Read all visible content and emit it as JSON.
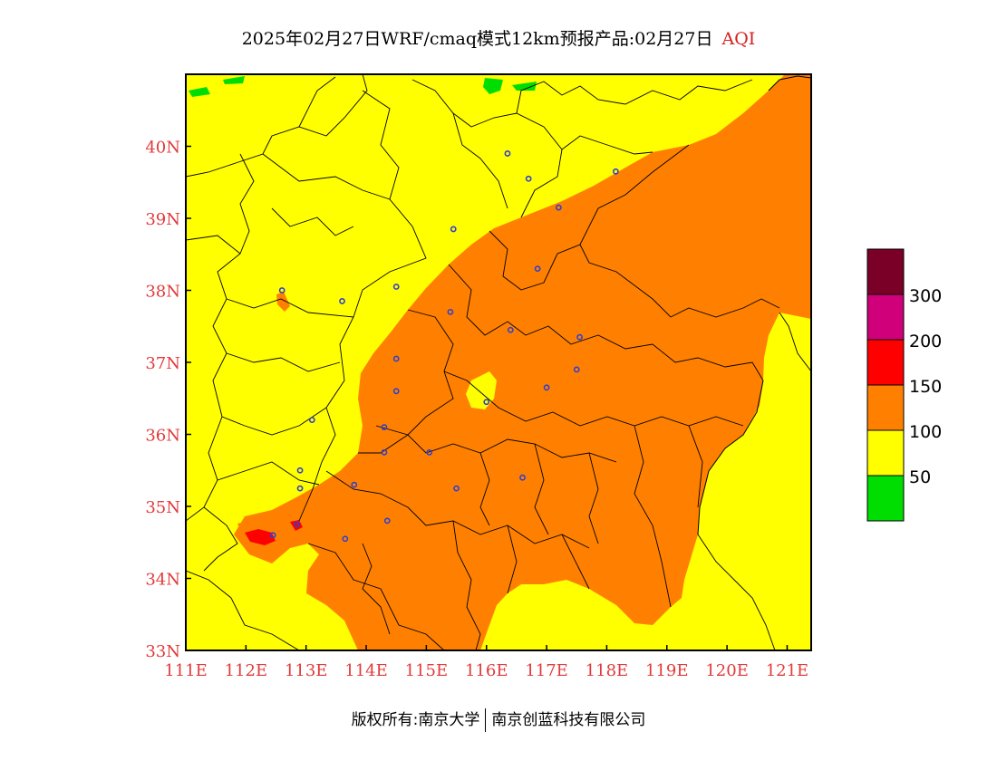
{
  "title": {
    "main": "2025年02月27日WRF/cmaq模式12km预报产品:02月27日",
    "variable": "AQI"
  },
  "map": {
    "lon_range": [
      111,
      121.4
    ],
    "lat_range": [
      33,
      41
    ],
    "x_ticks": [
      "111E",
      "112E",
      "113E",
      "114E",
      "115E",
      "116E",
      "117E",
      "118E",
      "119E",
      "120E",
      "121E"
    ],
    "y_ticks": [
      "33N",
      "34N",
      "35N",
      "36N",
      "37N",
      "38N",
      "39N",
      "40N"
    ],
    "cities": [
      [
        112.6,
        38.0
      ],
      [
        113.6,
        37.85
      ],
      [
        114.5,
        38.05
      ],
      [
        115.4,
        37.7
      ],
      [
        116.4,
        37.45
      ],
      [
        115.45,
        38.85
      ],
      [
        116.35,
        39.9
      ],
      [
        116.7,
        39.55
      ],
      [
        118.15,
        39.65
      ],
      [
        117.2,
        39.15
      ],
      [
        116.85,
        38.3
      ],
      [
        114.5,
        37.05
      ],
      [
        114.5,
        36.6
      ],
      [
        116.0,
        36.45
      ],
      [
        117.0,
        36.65
      ],
      [
        117.5,
        36.9
      ],
      [
        117.55,
        37.35
      ],
      [
        113.1,
        36.2
      ],
      [
        112.9,
        35.5
      ],
      [
        112.9,
        35.25
      ],
      [
        113.8,
        35.3
      ],
      [
        114.3,
        36.1
      ],
      [
        114.3,
        35.75
      ],
      [
        115.05,
        35.75
      ],
      [
        115.5,
        35.25
      ],
      [
        116.6,
        35.4
      ],
      [
        114.35,
        34.8
      ],
      [
        113.65,
        34.55
      ],
      [
        112.45,
        34.6
      ],
      [
        112.85,
        34.75
      ]
    ],
    "colors": {
      "green": "#00dd00",
      "yellow": "#ffff00",
      "orange": "#ff8000",
      "red": "#ff0000",
      "magenta": "#d0007a",
      "maroon": "#7a0028",
      "city": "#3040d0",
      "border": "#000000",
      "tick": "#e23a3a"
    }
  },
  "legend": {
    "labels": [
      "50",
      "100",
      "150",
      "200",
      "300"
    ]
  },
  "copyright": {
    "left": "版权所有:南京大学",
    "right": "南京创蓝科技有限公司"
  }
}
